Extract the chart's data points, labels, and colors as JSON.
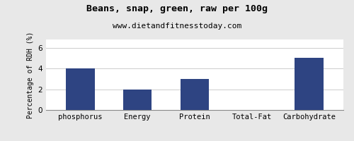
{
  "title": "Beans, snap, green, raw per 100g",
  "subtitle": "www.dietandfitnesstoday.com",
  "categories": [
    "phosphorus",
    "Energy",
    "Protein",
    "Total-Fat",
    "Carbohydrate"
  ],
  "values": [
    4.0,
    2.0,
    3.0,
    0.03,
    5.0
  ],
  "bar_color": "#2e4482",
  "ylabel": "Percentage of RDH (%)",
  "ylim": [
    0,
    6.8
  ],
  "yticks": [
    0,
    2,
    4,
    6
  ],
  "background_color": "#e8e8e8",
  "plot_bg_color": "#ffffff",
  "title_fontsize": 9.5,
  "subtitle_fontsize": 8,
  "ylabel_fontsize": 7,
  "tick_fontsize": 7.5
}
